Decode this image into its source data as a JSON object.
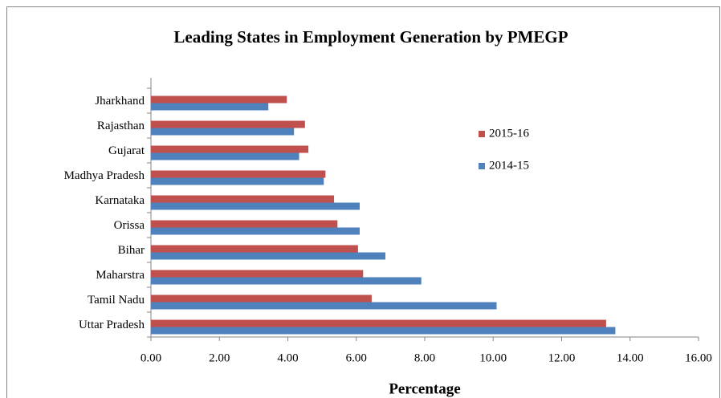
{
  "chart_data": {
    "type": "hbar",
    "title": "Leading States in Employment Generation by PMEGP",
    "xlabel": "Percentage",
    "categories": [
      "Jharkhand",
      "Rajasthan",
      "Gujarat",
      "Madhya Pradesh",
      "Karnataka",
      "Orissa",
      "Bihar",
      "Maharstra",
      "Tamil Nadu",
      "Uttar Pradesh"
    ],
    "series": [
      {
        "name": "2015-16",
        "color": "#c0504d",
        "values": [
          3.97,
          4.5,
          4.6,
          5.1,
          5.35,
          5.45,
          6.05,
          6.2,
          6.45,
          13.3
        ]
      },
      {
        "name": "2014-15",
        "color": "#4f81bd",
        "values": [
          3.43,
          4.18,
          4.33,
          5.05,
          6.1,
          6.1,
          6.85,
          7.9,
          10.1,
          13.57
        ]
      }
    ],
    "xlim": [
      0,
      16
    ],
    "xticks": [
      {
        "value": 0,
        "label": "0.00"
      },
      {
        "value": 2,
        "label": "2.00"
      },
      {
        "value": 4,
        "label": "4.00"
      },
      {
        "value": 6,
        "label": "6.00"
      },
      {
        "value": 8,
        "label": "8.00"
      },
      {
        "value": 10,
        "label": "10.00"
      },
      {
        "value": 12,
        "label": "12.00"
      },
      {
        "value": 14,
        "label": "14.00"
      },
      {
        "value": 16,
        "label": "16.00"
      }
    ],
    "legend": "right"
  }
}
